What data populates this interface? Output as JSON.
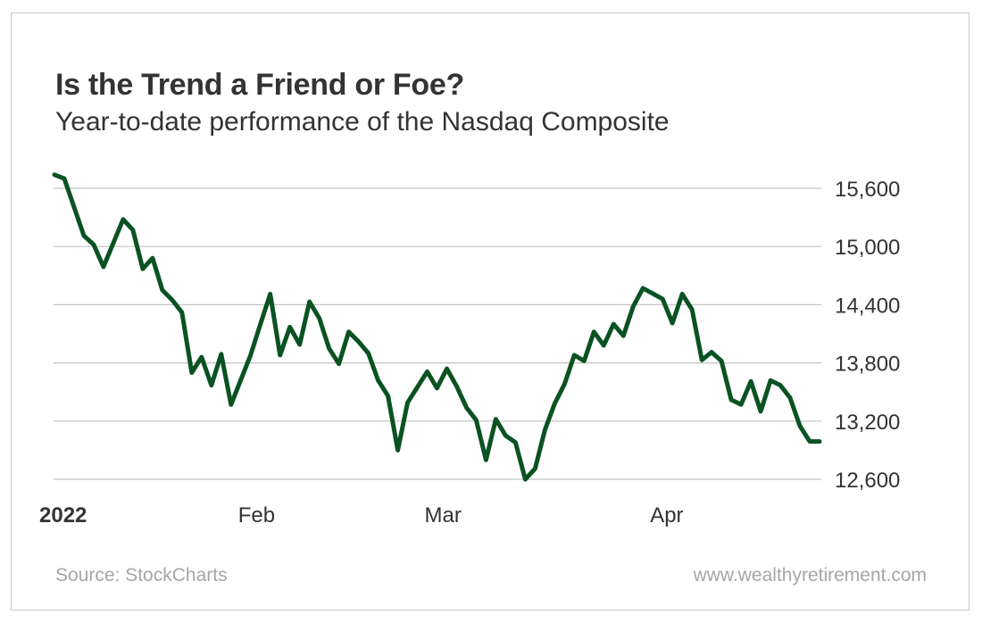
{
  "header": {
    "title": "Is the Trend a Friend or Foe?",
    "subtitle": "Year-to-date performance of the Nasdaq Composite"
  },
  "footer": {
    "source": "Source: StockCharts",
    "website": "www.wealthyretirement.com"
  },
  "colors": {
    "line": "#0b5223",
    "grid": "#c4c4c4",
    "text": "#333333",
    "muted": "#a6a6a6"
  },
  "chart_data": {
    "type": "line",
    "title": "Is the Trend a Friend or Foe?",
    "subtitle": "Year-to-date performance of the Nasdaq Composite",
    "xlabel": "",
    "ylabel": "",
    "values_note": "approximate - estimated from pixel positions, no data labels shown",
    "ylim": [
      12600,
      15750
    ],
    "y_ticks": [
      15600,
      15000,
      14400,
      13800,
      13200,
      12600
    ],
    "y_tick_labels": [
      "15,600",
      "15,000",
      "14,400",
      "13,800",
      "13,200",
      "12,600"
    ],
    "y_axis_position": "right",
    "grid": true,
    "x_ticks": [
      {
        "label": "2022",
        "index": 0,
        "bold": true
      },
      {
        "label": "Feb",
        "index": 20,
        "bold": false
      },
      {
        "label": "Mar",
        "index": 39,
        "bold": false
      },
      {
        "label": "Apr",
        "index": 62,
        "bold": false
      }
    ],
    "series": [
      {
        "name": "Nasdaq Composite",
        "x_index": [
          0,
          1,
          3,
          4,
          5,
          7,
          8,
          9,
          10,
          11,
          12,
          13,
          14,
          15,
          16,
          17,
          18,
          20,
          21,
          22,
          23,
          24,
          25,
          26,
          27,
          28,
          29,
          30,
          31,
          32,
          33,
          34,
          35,
          36,
          38,
          39,
          40,
          41,
          42,
          43,
          44,
          45,
          46,
          47,
          48,
          49,
          50,
          51,
          52,
          53,
          54,
          55,
          56,
          57,
          58,
          59,
          60,
          62,
          63,
          64,
          65,
          66,
          67,
          68,
          69,
          70,
          71,
          72,
          73,
          74,
          75,
          76,
          77,
          78
        ],
        "values": [
          15740,
          15700,
          15110,
          15020,
          14790,
          15280,
          15170,
          14770,
          14880,
          14550,
          14450,
          14320,
          13700,
          13860,
          13570,
          13890,
          13370,
          13880,
          14200,
          14510,
          13880,
          14170,
          13990,
          14430,
          14260,
          13950,
          13790,
          14120,
          14020,
          13900,
          13620,
          13460,
          12900,
          13390,
          13710,
          13540,
          13740,
          13560,
          13340,
          13210,
          12800,
          13220,
          13050,
          12980,
          12600,
          12710,
          13110,
          13380,
          13580,
          13880,
          13820,
          14120,
          13980,
          14200,
          14080,
          14380,
          14570,
          14460,
          14210,
          14510,
          14350,
          13830,
          13910,
          13820,
          13420,
          13370,
          13610,
          13300,
          13620,
          13570,
          13440,
          13150,
          12990,
          12990
        ]
      }
    ]
  }
}
